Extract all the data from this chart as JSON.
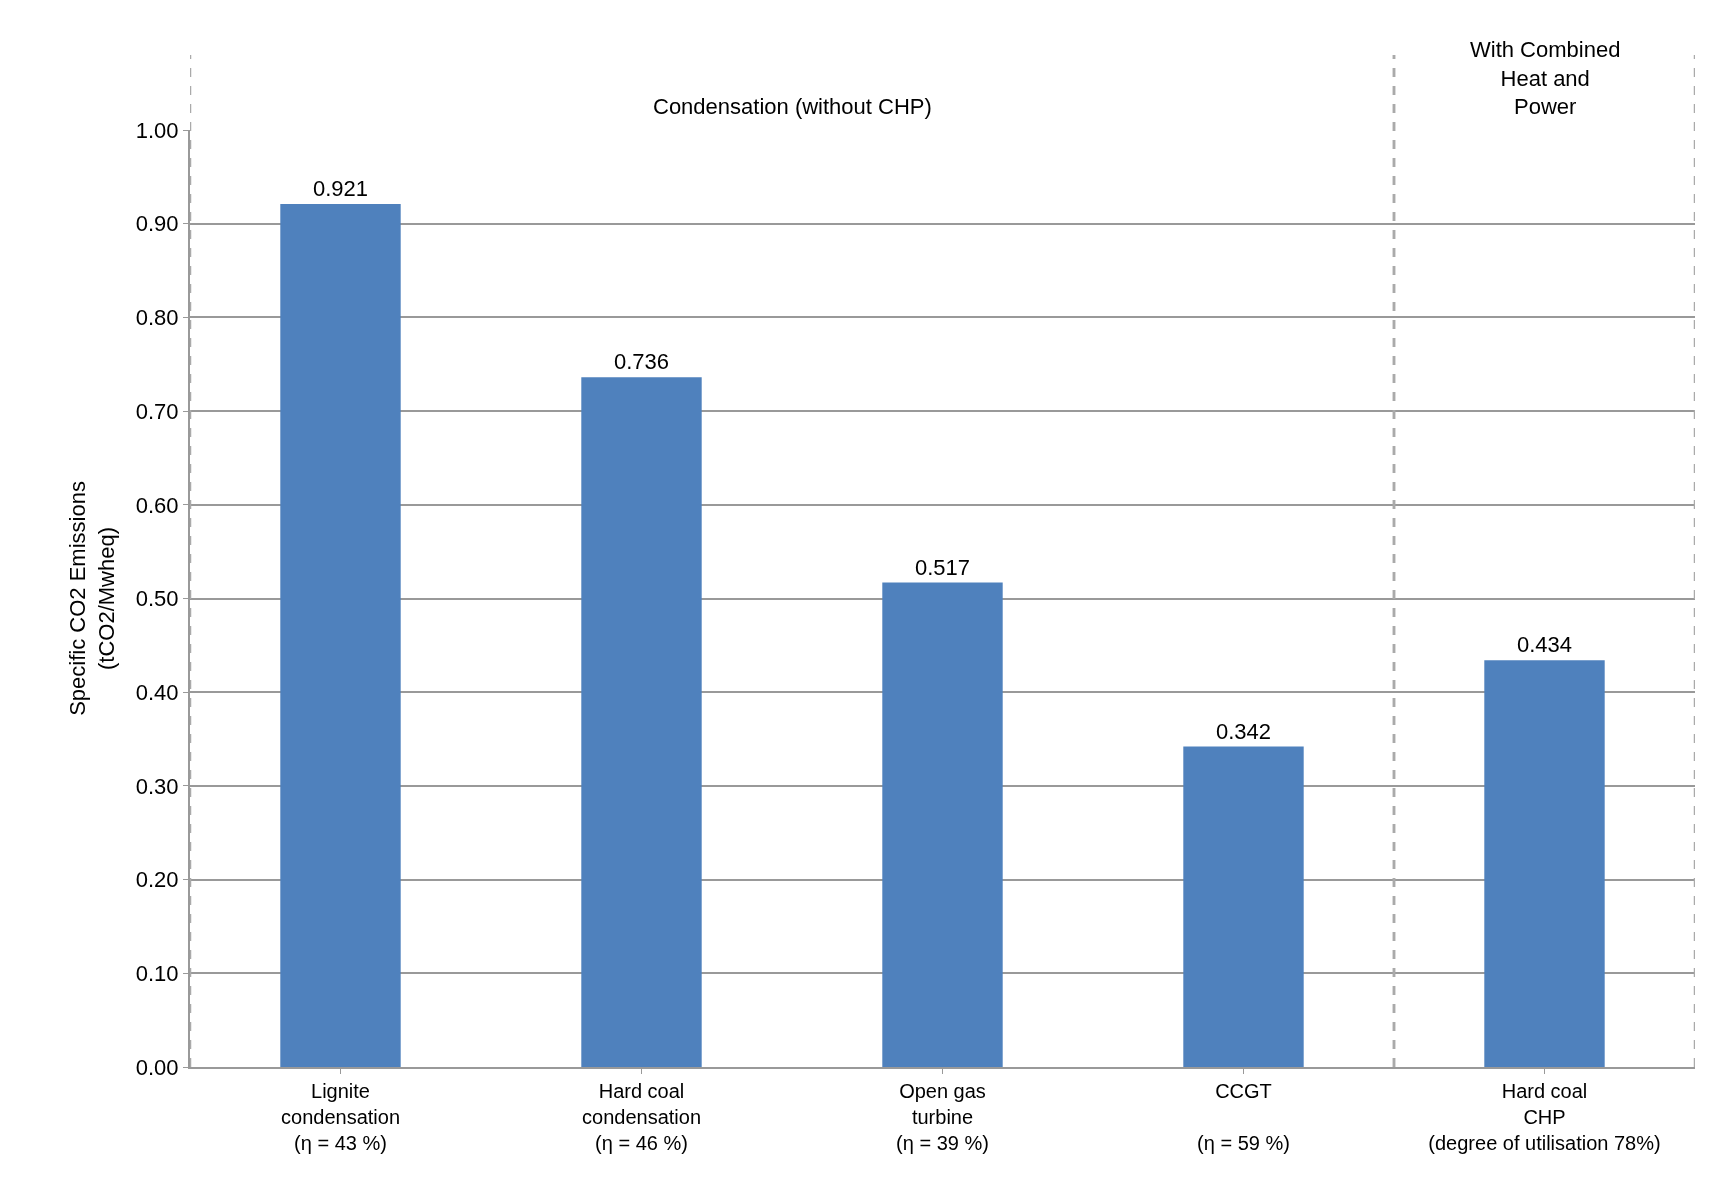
{
  "chart_data": {
    "type": "bar",
    "ylabel": "Specific CO2 Emissions\n(tCO2/Mwheq)",
    "categories": [
      "Lignite\ncondensation\n(η = 43 %)",
      "Hard coal\ncondensation\n(η = 46 %)",
      "Open gas\nturbine\n(η = 39 %)",
      "CCGT\n\n(η = 59 %)",
      "Hard coal\nCHP\n(degree of utilisation 78%)"
    ],
    "values": [
      0.921,
      0.736,
      0.517,
      0.342,
      0.434
    ],
    "color": "#4f81bd",
    "data_labels": true,
    "ylim": [
      0,
      1
    ],
    "yticks": [
      {
        "value": 0,
        "label": "0.00"
      },
      {
        "value": 0.1,
        "label": "0.10"
      },
      {
        "value": 0.2,
        "label": "0.20"
      },
      {
        "value": 0.3,
        "label": "0.30"
      },
      {
        "value": 0.4,
        "label": "0.40"
      },
      {
        "value": 0.5,
        "label": "0.50"
      },
      {
        "value": 0.6,
        "label": "0.60"
      },
      {
        "value": 0.7,
        "label": "0.70"
      },
      {
        "value": 0.8,
        "label": "0.80"
      },
      {
        "value": 0.9,
        "label": "0.90"
      },
      {
        "value": 1,
        "label": "1.00"
      }
    ],
    "grid": "y",
    "annotations": [
      "Condensation (without CHP)",
      "With Combined\nHeat and\nPower"
    ]
  }
}
